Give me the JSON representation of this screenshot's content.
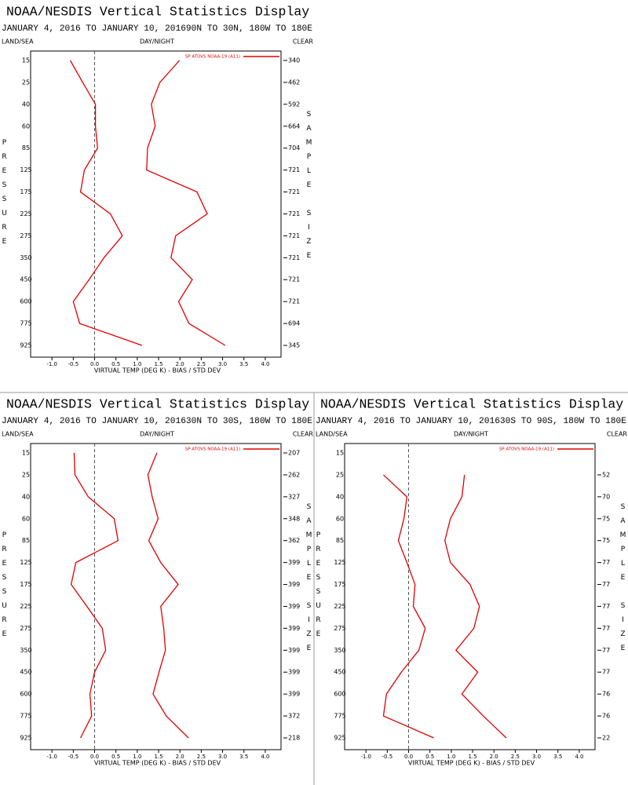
{
  "chart_data": [
    {
      "type": "line",
      "title": "NOAA/NESDIS Vertical Statistics Display",
      "date_range": "JANUARY 4, 2016 TO JANUARY 10, 2016",
      "region": "90N TO 30N, 180W TO 180E",
      "corner_labels": [
        "LAND/SEA",
        "DAY/NIGHT",
        "CLEAR"
      ],
      "legend_label": "SP ATOVS NOAA-19 (A11)",
      "legend": "upper right",
      "x_label": "VIRTUAL TEMP (DEG K) - BIAS / STD DEV",
      "y_label": "PRESSURE",
      "y2_label": "SAMPLE SIZE",
      "categories": [
        "15",
        "25",
        "40",
        "60",
        "85",
        "125",
        "175",
        "225",
        "275",
        "350",
        "450",
        "600",
        "775",
        "925"
      ],
      "sample_size": [
        340,
        462,
        592,
        664,
        704,
        721,
        721,
        721,
        721,
        721,
        721,
        721,
        694,
        345
      ],
      "series": [
        {
          "color": "#e00000",
          "values": [
            -0.57,
            -0.28,
            0.02,
            0.02,
            0.07,
            -0.24,
            -0.33,
            0.37,
            0.65,
            0.22,
            -0.13,
            -0.5,
            -0.35,
            1.11
          ]
        },
        {
          "color": "#e00000",
          "values": [
            1.99,
            1.53,
            1.33,
            1.42,
            1.24,
            1.22,
            2.4,
            2.64,
            1.9,
            1.79,
            2.29,
            1.97,
            2.21,
            3.06
          ]
        }
      ],
      "xlim": [
        -1.5,
        4.37
      ],
      "xticks": [
        {
          "value": -1,
          "label": "-1.0"
        },
        -0.5,
        {
          "value": 0,
          "label": "0.0"
        },
        0.5,
        {
          "value": 1,
          "label": "1.0"
        },
        1.5,
        {
          "value": 2,
          "label": "2.0"
        },
        2.5,
        {
          "value": 3,
          "label": "3.0"
        },
        3.5,
        {
          "value": 4,
          "label": "4.0"
        }
      ]
    },
    {
      "type": "line",
      "title": "NOAA/NESDIS Vertical Statistics Display",
      "date_range": "JANUARY 4, 2016 TO JANUARY 10, 2016",
      "region": "30N TO 30S, 180W TO 180E",
      "corner_labels": [
        "LAND/SEA",
        "DAY/NIGHT",
        "CLEAR"
      ],
      "legend_label": "SP ATOVS NOAA-19 (A11)",
      "legend": "upper right",
      "x_label": "VIRTUAL TEMP (DEG K) - BIAS / STD DEV",
      "y_label": "PRESSURE",
      "y2_label": "SAMPLE SIZE",
      "categories": [
        "15",
        "25",
        "40",
        "60",
        "85",
        "125",
        "175",
        "225",
        "275",
        "350",
        "450",
        "600",
        "775",
        "925"
      ],
      "sample_size": [
        207,
        262,
        327,
        348,
        362,
        399,
        399,
        399,
        399,
        399,
        399,
        399,
        372,
        218
      ],
      "series": [
        {
          "color": "#e00000",
          "values": [
            -0.48,
            -0.46,
            -0.15,
            0.46,
            0.55,
            -0.44,
            -0.55,
            -0.18,
            0.18,
            0.26,
            0,
            -0.11,
            -0.07,
            -0.33
          ]
        },
        {
          "color": "#e00000",
          "values": [
            1.46,
            1.25,
            1.35,
            1.49,
            1.27,
            1.55,
            1.96,
            1.55,
            1.62,
            1.66,
            1.51,
            1.37,
            1.68,
            2.2
          ]
        }
      ],
      "xlim": [
        -1.5,
        4.37
      ],
      "xticks": [
        {
          "value": -1,
          "label": "-1.0"
        },
        -0.5,
        {
          "value": 0,
          "label": "0.0"
        },
        0.5,
        {
          "value": 1,
          "label": "1.0"
        },
        1.5,
        {
          "value": 2,
          "label": "2.0"
        },
        2.5,
        {
          "value": 3,
          "label": "3.0"
        },
        3.5,
        {
          "value": 4,
          "label": "4.0"
        }
      ]
    },
    {
      "type": "line",
      "title": "NOAA/NESDIS Vertical Statistics Display",
      "date_range": "JANUARY 4, 2016 TO JANUARY 10, 2016",
      "region": "30S TO 90S, 180W TO 180E",
      "corner_labels": [
        "LAND/SEA",
        "DAY/NIGHT",
        "CLEAR"
      ],
      "legend_label": "SP ATOVS NOAA-19 (A11)",
      "legend": "upper right",
      "x_label": "VIRTUAL TEMP (DEG K) - BIAS / STD DEV",
      "y_label": "PRESSURE",
      "y2_label": "SAMPLE SIZE",
      "categories": [
        "15",
        "25",
        "40",
        "60",
        "85",
        "125",
        "175",
        "225",
        "275",
        "350",
        "450",
        "600",
        "775",
        "925"
      ],
      "sample_size": [
        null,
        52,
        70,
        75,
        75,
        77,
        77,
        77,
        77,
        77,
        77,
        76,
        76,
        22
      ],
      "series": [
        {
          "color": "#e00000",
          "values": [
            null,
            -0.59,
            -0.04,
            -0.11,
            -0.24,
            -0.04,
            0.15,
            0.11,
            0.39,
            0.24,
            -0.17,
            -0.52,
            -0.59,
            0.59
          ]
        },
        {
          "color": "#e00000",
          "values": [
            null,
            1.31,
            1.25,
            0.98,
            0.85,
            0.98,
            1.44,
            1.66,
            1.53,
            1.11,
            1.62,
            1.25,
            1.75,
            2.29
          ]
        }
      ],
      "xlim": [
        -1.5,
        4.37
      ],
      "xticks": [
        {
          "value": -1,
          "label": "-1.0"
        },
        -0.5,
        {
          "value": 0,
          "label": "0.0"
        },
        0.5,
        {
          "value": 1,
          "label": "1.0"
        },
        1.5,
        {
          "value": 2,
          "label": "2.0"
        },
        2.5,
        {
          "value": 3,
          "label": "3.0"
        },
        3.5,
        {
          "value": 4,
          "label": "4.0"
        }
      ]
    }
  ]
}
